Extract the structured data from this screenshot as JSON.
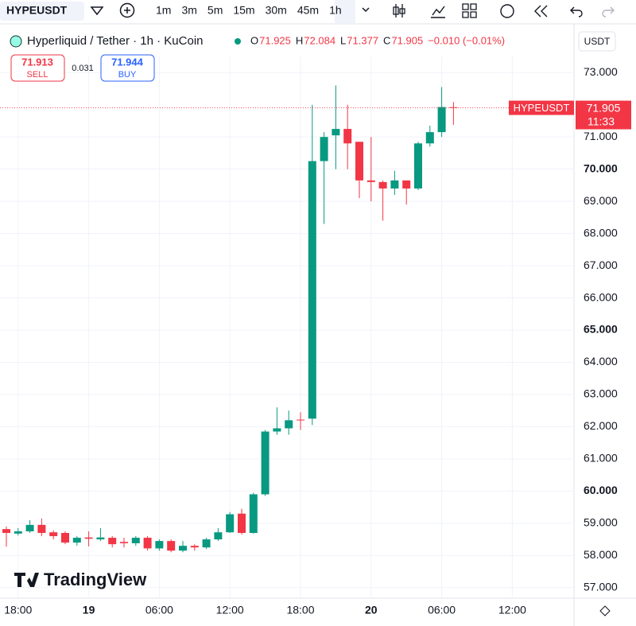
{
  "toolbar": {
    "symbol": "HYPEUSDT",
    "intervals": [
      "1m",
      "3m",
      "5m",
      "15m",
      "30m",
      "45m",
      "1h"
    ]
  },
  "legend": {
    "title": "Hyperliquid / Tether · 1h · KuCoin",
    "o": "O",
    "h": "H",
    "l": "L",
    "c": "C",
    "change": "−0.010 (−0.01%)"
  },
  "trade": {
    "sell_price": "71.913",
    "sell": "SELL",
    "spread": "0.031",
    "buy_price": "71.944",
    "buy": "BUY"
  },
  "currency": "USDT",
  "logo": "TradingView",
  "chart_data": {
    "type": "candlestick",
    "categories": [
      null,
      "18:00",
      null,
      null,
      null,
      null,
      null,
      "19",
      null,
      null,
      null,
      null,
      null,
      "06:00",
      null,
      null,
      null,
      null,
      null,
      "12:00",
      null,
      null,
      null,
      null,
      null,
      "18:00",
      null,
      null,
      null,
      null,
      null,
      "20",
      null,
      null,
      null,
      null,
      null,
      "06:00",
      null,
      null,
      null,
      null,
      null,
      "12:00"
    ],
    "open": [
      58.82,
      58.68,
      58.75,
      58.95,
      58.72,
      58.7,
      58.4,
      58.56,
      58.5,
      58.55,
      58.42,
      58.38,
      58.55,
      58.22,
      58.45,
      58.15,
      58.3,
      58.25,
      58.5,
      58.72,
      59.3,
      58.7,
      59.9,
      61.85,
      61.95,
      62.22,
      62.25,
      70.25,
      71.05,
      71.25,
      70.85,
      69.65,
      69.6,
      69.4,
      69.65,
      69.4,
      70.8,
      71.15,
      71.925,
      null,
      null,
      null,
      null,
      null
    ],
    "high": [
      58.9,
      58.85,
      59.1,
      59.15,
      58.78,
      58.75,
      58.6,
      58.75,
      58.85,
      58.6,
      58.55,
      58.6,
      58.6,
      58.5,
      58.5,
      58.45,
      58.35,
      58.55,
      58.85,
      59.35,
      59.45,
      59.95,
      61.9,
      62.6,
      62.5,
      62.45,
      72.0,
      71.15,
      72.6,
      72.0,
      70.85,
      71.0,
      69.65,
      69.95,
      69.65,
      70.85,
      71.35,
      72.55,
      72.084,
      null,
      null,
      null,
      null,
      null
    ],
    "low": [
      58.27,
      58.62,
      58.7,
      58.6,
      58.5,
      58.35,
      58.3,
      58.28,
      58.45,
      58.25,
      58.25,
      58.3,
      58.15,
      58.15,
      58.1,
      58.1,
      58.15,
      58.2,
      58.45,
      58.7,
      58.65,
      58.68,
      59.85,
      61.75,
      61.75,
      61.9,
      62.05,
      68.3,
      70.0,
      70.0,
      69.1,
      69.0,
      68.4,
      69.2,
      68.9,
      69.35,
      70.7,
      71.0,
      71.377,
      null,
      null,
      null,
      null,
      null
    ],
    "close": [
      58.7,
      58.75,
      58.95,
      58.7,
      58.6,
      58.4,
      58.55,
      58.52,
      58.56,
      58.35,
      58.38,
      58.55,
      58.22,
      58.45,
      58.15,
      58.3,
      58.25,
      58.5,
      58.72,
      59.28,
      58.7,
      59.9,
      61.85,
      61.95,
      62.2,
      62.2,
      70.25,
      71.0,
      71.25,
      70.8,
      69.65,
      69.6,
      69.4,
      69.65,
      69.4,
      70.8,
      71.15,
      71.93,
      71.905,
      null,
      null,
      null,
      null,
      null
    ],
    "up_color": "#089981",
    "down_color": "#f23645",
    "ylim": [
      56.6,
      73.5
    ],
    "yticks": [
      {
        "value": 57,
        "label": "57.000"
      },
      {
        "value": 58,
        "label": "58.000"
      },
      {
        "value": 59,
        "label": "59.000"
      },
      {
        "value": 60,
        "label": "60.000"
      },
      {
        "value": 61,
        "label": "61.000"
      },
      {
        "value": 62,
        "label": "62.000"
      },
      {
        "value": 63,
        "label": "63.000"
      },
      {
        "value": 64,
        "label": "64.000"
      },
      {
        "value": 65,
        "label": "65.000"
      },
      {
        "value": 66,
        "label": "66.000"
      },
      {
        "value": 67,
        "label": "67.000"
      },
      {
        "value": 68,
        "label": "68.000"
      },
      {
        "value": 69,
        "label": "69.000"
      },
      {
        "value": 70,
        "label": "70.000"
      },
      {
        "value": 71,
        "label": "71.000"
      },
      {
        "value": 73,
        "label": "73.000"
      }
    ],
    "grid": true,
    "last_price": {
      "symbol": "HYPEUSDT",
      "value": 71.905,
      "countdown": "11:33"
    }
  }
}
